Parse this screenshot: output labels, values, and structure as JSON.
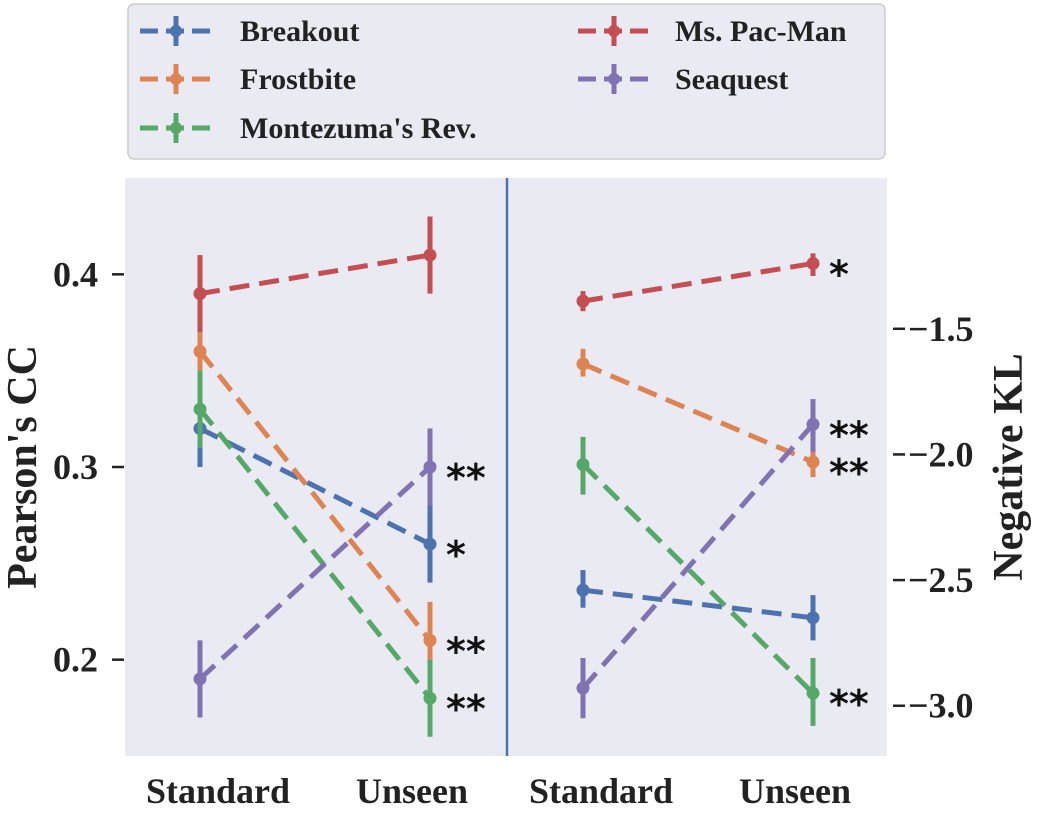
{
  "chart_data": {
    "type": "line",
    "categories": [
      "Standard",
      "Unseen"
    ],
    "legend": {
      "position": "top",
      "entries": [
        "Breakout",
        "Frostbite",
        "Montezuma's Rev.",
        "Ms. Pac-Man",
        "Seaquest"
      ]
    },
    "colors": {
      "Breakout": "#4c72b0",
      "Frostbite": "#dd8452",
      "Montezuma's Rev.": "#55a868",
      "Ms. Pac-Man": "#c44e52",
      "Seaquest": "#8172b3"
    },
    "panels": [
      {
        "ylabel": "Pearson's CC",
        "ylabel_side": "left",
        "ylim": [
          0.15,
          0.45
        ],
        "yticks": [
          0.2,
          0.3,
          0.4
        ],
        "ytick_labels": [
          "0.2",
          "0.3",
          "0.4"
        ],
        "series": [
          {
            "name": "Breakout",
            "values": [
              0.32,
              0.26
            ],
            "err": [
              [
                0.3,
                0.33
              ],
              [
                0.24,
                0.28
              ]
            ],
            "sig": [
              "",
              "*"
            ]
          },
          {
            "name": "Frostbite",
            "values": [
              0.36,
              0.21
            ],
            "err": [
              [
                0.35,
                0.37
              ],
              [
                0.2,
                0.23
              ]
            ],
            "sig": [
              "",
              "**"
            ]
          },
          {
            "name": "Montezuma's Rev.",
            "values": [
              0.33,
              0.18
            ],
            "err": [
              [
                0.31,
                0.35
              ],
              [
                0.16,
                0.2
              ]
            ],
            "sig": [
              "",
              "**"
            ]
          },
          {
            "name": "Ms. Pac-Man",
            "values": [
              0.39,
              0.41
            ],
            "err": [
              [
                0.37,
                0.41
              ],
              [
                0.39,
                0.43
              ]
            ],
            "sig": [
              "",
              ""
            ]
          },
          {
            "name": "Seaquest",
            "values": [
              0.19,
              0.3
            ],
            "err": [
              [
                0.17,
                0.21
              ],
              [
                0.28,
                0.32
              ]
            ],
            "sig": [
              "",
              "**"
            ]
          }
        ]
      },
      {
        "ylabel": "Negative KL",
        "ylabel_side": "right",
        "ylim": [
          -3.2,
          -0.9
        ],
        "yticks": [
          -3.0,
          -2.5,
          -2.0,
          -1.5
        ],
        "ytick_labels": [
          "−3.0",
          "−2.5",
          "−2.0",
          "−1.5"
        ],
        "series": [
          {
            "name": "Breakout",
            "values": [
              -2.54,
              -2.65
            ],
            "err": [
              [
                -2.61,
                -2.46
              ],
              [
                -2.74,
                -2.56
              ]
            ],
            "sig": [
              "",
              ""
            ]
          },
          {
            "name": "Frostbite",
            "values": [
              -1.64,
              -2.03
            ],
            "err": [
              [
                -1.69,
                -1.58
              ],
              [
                -2.09,
                -1.97
              ]
            ],
            "sig": [
              "",
              "**"
            ]
          },
          {
            "name": "Montezuma's Rev.",
            "values": [
              -2.04,
              -2.95
            ],
            "err": [
              [
                -2.16,
                -1.93
              ],
              [
                -3.08,
                -2.81
              ]
            ],
            "sig": [
              "",
              "**"
            ]
          },
          {
            "name": "Ms. Pac-Man",
            "values": [
              -1.39,
              -1.24
            ],
            "err": [
              [
                -1.43,
                -1.35
              ],
              [
                -1.29,
                -1.2
              ]
            ],
            "sig": [
              "",
              "*"
            ]
          },
          {
            "name": "Seaquest",
            "values": [
              -2.93,
              -1.88
            ],
            "err": [
              [
                -3.05,
                -2.81
              ],
              [
                -1.99,
                -1.78
              ]
            ],
            "sig": [
              "",
              "**"
            ]
          }
        ]
      }
    ]
  }
}
